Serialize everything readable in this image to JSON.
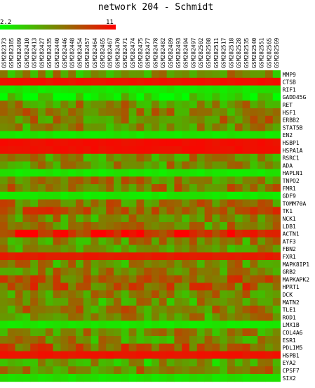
{
  "chart_data": {
    "type": "heatmap",
    "title": "network 204 - Schmidt",
    "color_scale": {
      "min": 2.2,
      "max": 11,
      "min_label": "2.2",
      "max_label": "11",
      "low_color": "#00ff00",
      "high_color": "#ff0000"
    },
    "columns": [
      "GSM282373",
      "GSM282385",
      "GSM282409",
      "GSM282410",
      "GSM282413",
      "GSM282427",
      "GSM282435",
      "GSM282440",
      "GSM282446",
      "GSM282448",
      "GSM282454",
      "GSM282457",
      "GSM282464",
      "GSM282465",
      "GSM282467",
      "GSM282470",
      "GSM282471",
      "GSM282474",
      "GSM282475",
      "GSM282477",
      "GSM282478",
      "GSM282482",
      "GSM282489",
      "GSM282493",
      "GSM282494",
      "GSM282497",
      "GSM282502",
      "GSM282508",
      "GSM282511",
      "GSM282517",
      "GSM282518",
      "GSM282528",
      "GSM282535",
      "GSM282540",
      "GSM282551",
      "GSM282565",
      "GSM282569"
    ],
    "rows": [
      "MMP9",
      "CTSB",
      "RIF1",
      "GADD45G",
      "RET",
      "HSF1",
      "ERBB2",
      "STAT5B",
      "EN2",
      "HSBP1",
      "HSPA1A",
      "RSRC1",
      "ADA",
      "HAPLN1",
      "TNPO2",
      "FMR1",
      "GDF9",
      "TOMM70A",
      "TK1",
      "NCK1",
      "LDB1",
      "ACTN1",
      "ATF3",
      "FBN2",
      "FXR1",
      "MAPK8IP1",
      "GRB2",
      "MAPKAPK2",
      "HPRT1",
      "DCK",
      "MATN2",
      "TLE1",
      "ROD1",
      "LMX1B",
      "COL4A6",
      "ESR1",
      "PDLIM5",
      "HSPB1",
      "EYA2",
      "CPSF7",
      "SIX2"
    ],
    "row_levels": [
      0.42,
      0.96,
      0.06,
      0.12,
      0.45,
      0.5,
      0.5,
      0.45,
      0.06,
      0.97,
      0.97,
      0.45,
      0.45,
      0.06,
      0.48,
      0.52,
      0.05,
      0.52,
      0.62,
      0.45,
      0.5,
      0.9,
      0.45,
      0.4,
      0.92,
      0.45,
      0.5,
      0.6,
      0.62,
      0.5,
      0.42,
      0.5,
      0.45,
      0.06,
      0.45,
      0.45,
      0.62,
      0.95,
      0.35,
      0.5,
      0.08
    ],
    "grid": false
  }
}
